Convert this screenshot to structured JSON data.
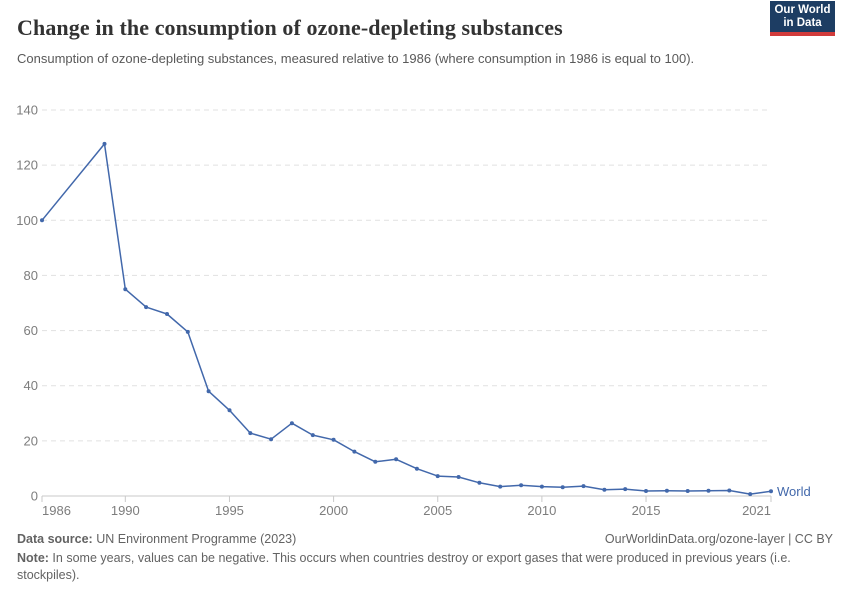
{
  "header": {
    "title": "Change in the consumption of ozone-depleting substances",
    "subtitle": "Consumption of ozone-depleting substances, measured relative to 1986 (where consumption in 1986 is equal to 100).",
    "logo": {
      "line1": "Our World",
      "line2": "in Data",
      "bg_color": "#1d3d63",
      "accent_color": "#d13b3b"
    }
  },
  "chart_data": {
    "type": "line",
    "title": "Change in the consumption of ozone-depleting substances",
    "xlabel": "",
    "ylabel": "",
    "x": [
      1986,
      1989,
      1990,
      1991,
      1992,
      1993,
      1994,
      1995,
      1996,
      1997,
      1998,
      1999,
      2000,
      2001,
      2002,
      2003,
      2004,
      2005,
      2006,
      2007,
      2008,
      2009,
      2010,
      2011,
      2012,
      2013,
      2014,
      2015,
      2016,
      2017,
      2018,
      2019,
      2020,
      2021
    ],
    "series": [
      {
        "name": "World",
        "color": "#4268ab",
        "values": [
          100,
          127.7,
          75,
          68.5,
          66,
          59.5,
          38,
          31.1,
          22.8,
          20.6,
          26.4,
          22.1,
          20.4,
          16.1,
          12.4,
          13.3,
          9.9,
          7.2,
          6.9,
          4.8,
          3.4,
          3.9,
          3.4,
          3.2,
          3.6,
          2.3,
          2.5,
          1.8,
          1.9,
          1.8,
          1.9,
          2.0,
          0.7,
          1.7
        ]
      }
    ],
    "xlim": [
      1986,
      2021
    ],
    "ylim": [
      0,
      140
    ],
    "yticks": [
      0,
      20,
      40,
      60,
      80,
      100,
      120,
      140
    ],
    "xticks": [
      1986,
      1990,
      1995,
      2000,
      2005,
      2010,
      2015,
      2021
    ],
    "grid": "horizontal-dashed",
    "legend_position": "end-of-line",
    "marker": "dot"
  },
  "footer": {
    "datasource_label": "Data source:",
    "datasource_value": " UN Environment Programme (2023)",
    "link": "OurWorldinData.org/ozone-layer | CC BY",
    "note_label": "Note:",
    "note_value": " In some years, values can be negative. This occurs when countries destroy or export gases that were produced in previous years (i.e. stockpiles)."
  }
}
